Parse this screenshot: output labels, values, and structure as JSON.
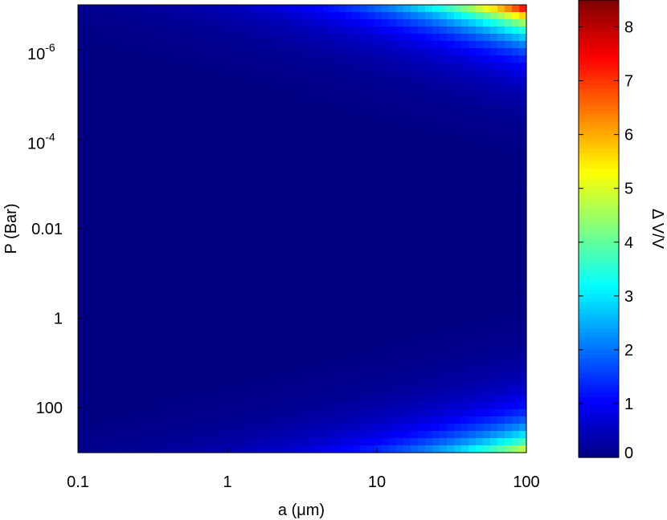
{
  "chart_data": {
    "type": "heatmap",
    "x": {
      "label": "a (μm)",
      "scale": "log",
      "range": [
        0.1,
        100
      ],
      "ticks": [
        {
          "value": 0.1,
          "label": "0.1"
        },
        {
          "value": 1,
          "label": "1"
        },
        {
          "value": 10,
          "label": "10"
        },
        {
          "value": 100,
          "label": "100"
        }
      ]
    },
    "y": {
      "label": "P (Bar)",
      "scale": "log",
      "inverted": true,
      "range": [
        1e-07,
        1000
      ],
      "ticks": [
        {
          "value": 1e-06,
          "base": "10",
          "exp": "-6"
        },
        {
          "value": 0.0001,
          "base": "10",
          "exp": "-4"
        },
        {
          "value": 0.01,
          "base": "0.01",
          "exp": ""
        },
        {
          "value": 1,
          "base": "1",
          "exp": ""
        },
        {
          "value": 100,
          "base": "100",
          "exp": ""
        }
      ]
    },
    "colorbar": {
      "label": "Δ V/V",
      "range": [
        0,
        8.5
      ],
      "colormap": "jet",
      "ticks": [
        {
          "value": 0,
          "label": "0"
        },
        {
          "value": 1,
          "label": "1"
        },
        {
          "value": 2,
          "label": "2"
        },
        {
          "value": 3,
          "label": "3"
        },
        {
          "value": 4,
          "label": "4"
        },
        {
          "value": 5,
          "label": "5"
        },
        {
          "value": 6,
          "label": "6"
        },
        {
          "value": 7,
          "label": "7"
        },
        {
          "value": 8,
          "label": "8"
        }
      ]
    },
    "field": {
      "top_corner_max": 8.4,
      "bottom_corner_max": 5.5
    }
  }
}
